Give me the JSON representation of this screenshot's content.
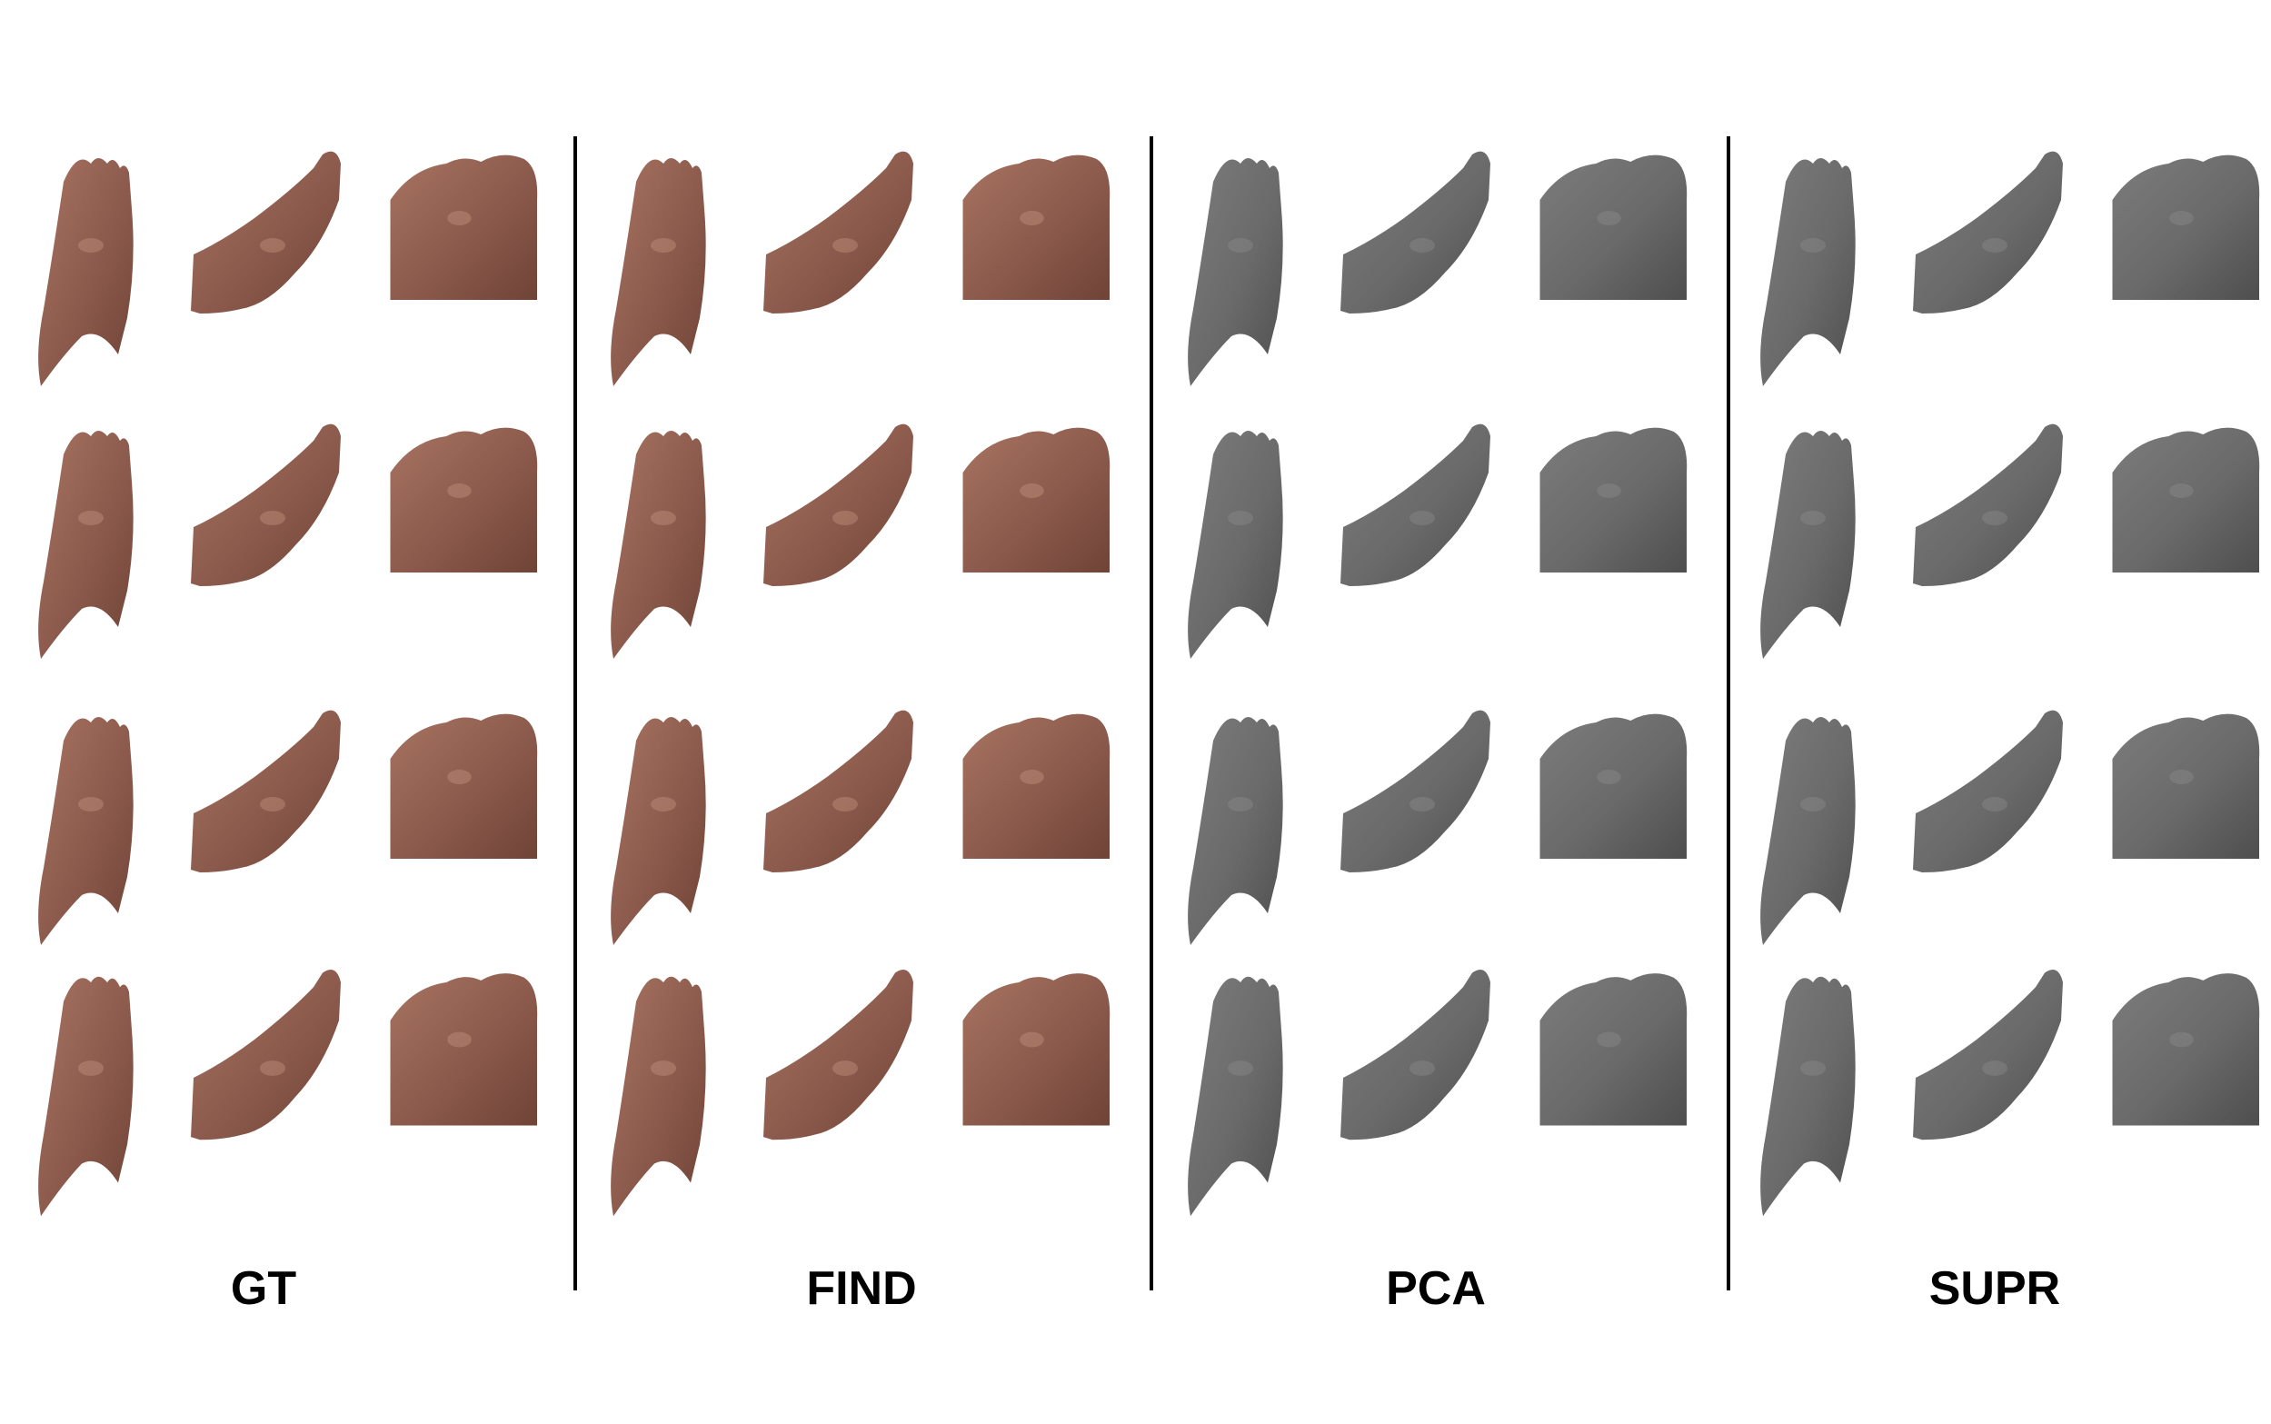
{
  "figure": {
    "columns": [
      {
        "id": "gt",
        "label": "GT",
        "skin": "textured"
      },
      {
        "id": "find",
        "label": "FIND",
        "skin": "textured"
      },
      {
        "id": "pca",
        "label": "PCA",
        "skin": "grey"
      },
      {
        "id": "supr",
        "label": "SUPR",
        "skin": "grey"
      }
    ],
    "rows": 4,
    "views": [
      "top-view",
      "side-view",
      "toe-closeup"
    ],
    "colors": {
      "textured_base": "#8b5a4c",
      "textured_light": "#a87462",
      "textured_dark": "#6f4336",
      "grey_base": "#6a6a6a",
      "grey_light": "#7c7c7c",
      "grey_dark": "#4e4e4e",
      "divider": "#000000"
    }
  }
}
